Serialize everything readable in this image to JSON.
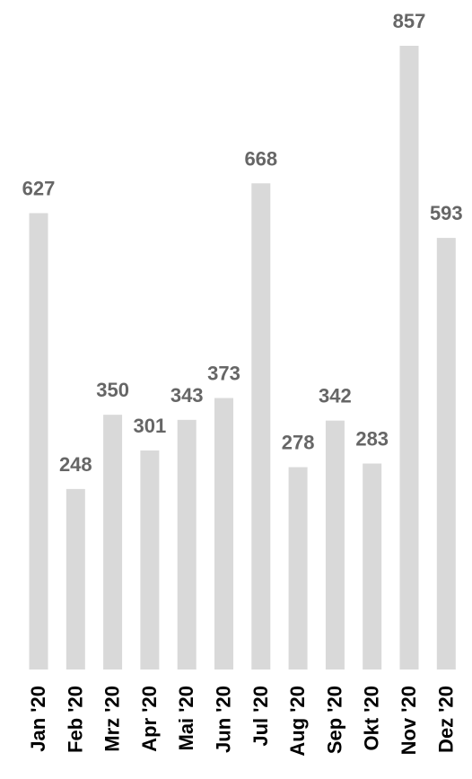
{
  "chart_data": {
    "type": "bar",
    "title": "",
    "xlabel": "",
    "ylabel": "",
    "categories": [
      "Jan '20",
      "Feb '20",
      "Mrz '20",
      "Apr '20",
      "Mai '20",
      "Jun '20",
      "Jul '20",
      "Aug '20",
      "Sep '20",
      "Okt '20",
      "Nov '20",
      "Dez '20"
    ],
    "values": [
      627,
      248,
      350,
      301,
      343,
      373,
      668,
      278,
      342,
      283,
      857,
      593
    ],
    "ylim": [
      0,
      857
    ],
    "grid": false,
    "legend": "none",
    "colors": {
      "bar": "#d9d9d9",
      "value_label": "#666666",
      "tick_label": "#000000"
    }
  }
}
